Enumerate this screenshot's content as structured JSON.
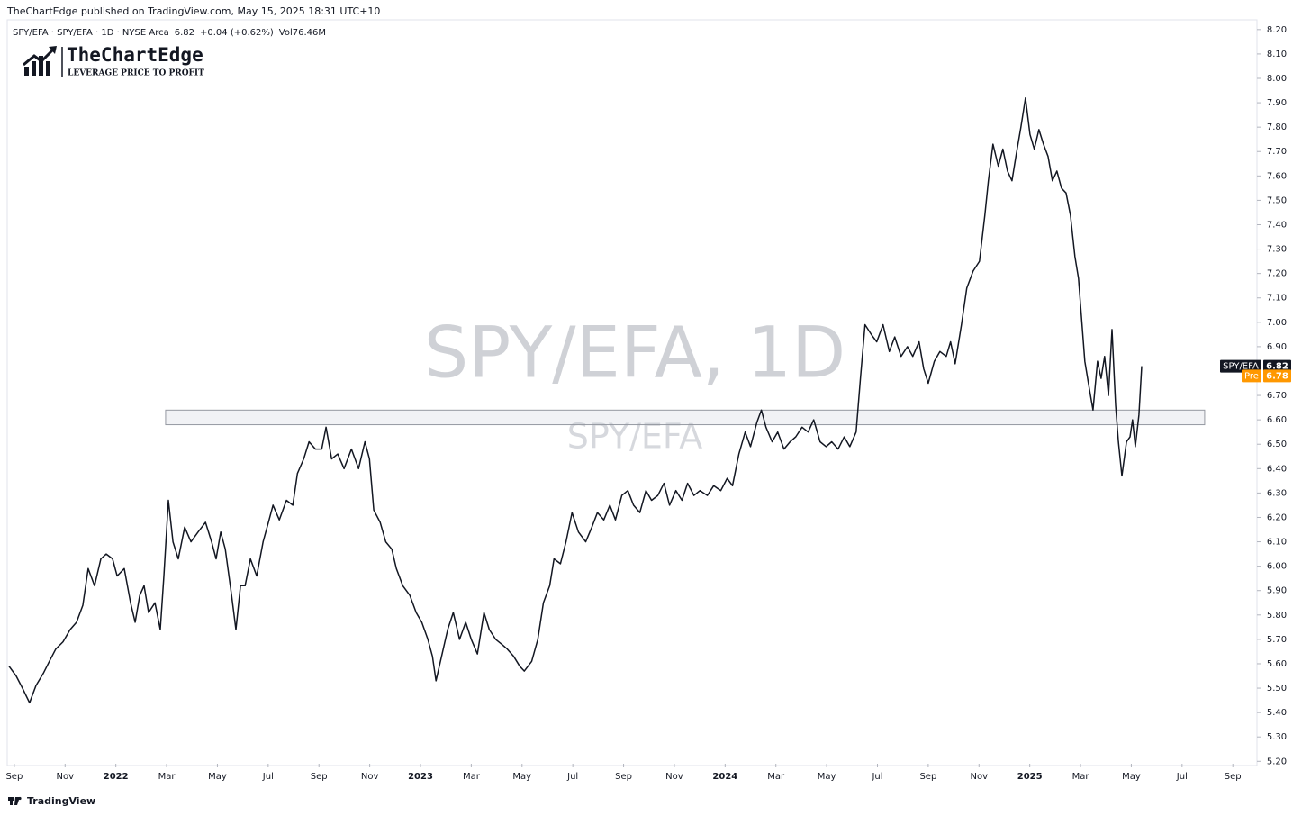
{
  "chart_data": {
    "type": "line",
    "publisher_note": "TheChartEdge published on TradingView.com, May 15, 2025 18:31 UTC+10",
    "logo_name": "TheChartEdge",
    "logo_tagline": "LEVERAGE PRICE TO PROFIT",
    "legend_symbol": "SPY/EFA · SPY/EFA · 1D · NYSE Arca",
    "legend_last": "6.82",
    "legend_change": "+0.04 (+0.62%)",
    "legend_volume": "Vol76.46M",
    "watermark_title": "SPY/EFA, 1D",
    "watermark_subtitle": "SPY/EFA",
    "footer_brand": "TradingView",
    "x": [
      -0.21,
      0.07,
      0.32,
      0.6,
      0.85,
      1.14,
      1.38,
      1.63,
      1.92,
      2.2,
      2.45,
      2.7,
      2.91,
      3.16,
      3.41,
      3.62,
      3.87,
      4.05,
      4.33,
      4.58,
      4.76,
      4.94,
      5.11,
      5.29,
      5.54,
      5.75,
      5.89,
      6.07,
      6.25,
      6.46,
      6.71,
      6.96,
      7.24,
      7.53,
      7.77,
      7.95,
      8.13,
      8.31,
      8.56,
      8.73,
      8.91,
      9.09,
      9.3,
      9.55,
      9.8,
      10.01,
      10.19,
      10.44,
      10.72,
      10.97,
      11.15,
      11.4,
      11.61,
      11.86,
      12.11,
      12.28,
      12.5,
      12.74,
      12.99,
      13.28,
      13.56,
      13.81,
      13.99,
      14.16,
      14.41,
      14.63,
      14.87,
      15.05,
      15.3,
      15.58,
      15.83,
      16.05,
      16.29,
      16.47,
      16.61,
      16.83,
      17.07,
      17.29,
      17.54,
      17.78,
      18.0,
      18.24,
      18.5,
      18.71,
      18.96,
      19.2,
      19.42,
      19.67,
      19.91,
      20.09,
      20.38,
      20.62,
      20.84,
      21.09,
      21.26,
      21.51,
      21.73,
      21.97,
      22.22,
      22.51,
      22.75,
      22.97,
      23.22,
      23.46,
      23.68,
      23.93,
      24.17,
      24.39,
      24.64,
      24.88,
      25.1,
      25.35,
      25.59,
      25.81,
      26.06,
      26.3,
      26.52,
      26.77,
      27.01,
      27.3,
      27.55,
      27.83,
      28.08,
      28.29,
      28.54,
      28.79,
      29.0,
      29.25,
      29.43,
      29.61,
      29.85,
      30.07,
      30.32,
      30.56,
      30.78,
      31.03,
      31.27,
      31.49,
      31.74,
      31.98,
      32.2,
      32.45,
      32.69,
      32.91,
      33.16,
      33.33,
      33.51,
      33.76,
      33.97,
      34.22,
      34.47,
      34.68,
      34.93,
      35.18,
      35.39,
      35.64,
      35.82,
      36.0,
      36.24,
      36.46,
      36.71,
      36.88,
      37.06,
      37.31,
      37.52,
      37.77,
      38.02,
      38.23,
      38.37,
      38.55,
      38.76,
      38.94,
      39.12,
      39.3,
      39.47,
      39.65,
      39.83,
      40.01,
      40.18,
      40.36,
      40.54,
      40.72,
      40.89,
      41.07,
      41.25,
      41.43,
      41.6,
      41.78,
      41.92,
      42.03,
      42.17,
      42.31,
      42.49,
      42.67,
      42.81,
      42.95,
      43.1,
      43.24,
      43.38,
      43.49,
      43.63,
      43.81,
      43.95,
      44.05,
      44.16,
      44.3,
      44.41
    ],
    "series": [
      {
        "name": "SPY/EFA",
        "color": "#131722",
        "values": [
          5.59,
          5.55,
          5.5,
          5.44,
          5.51,
          5.56,
          5.61,
          5.66,
          5.69,
          5.74,
          5.77,
          5.84,
          5.99,
          5.92,
          6.03,
          6.05,
          6.03,
          5.96,
          5.99,
          5.85,
          5.77,
          5.88,
          5.92,
          5.81,
          5.85,
          5.74,
          5.96,
          6.27,
          6.1,
          6.03,
          6.16,
          6.1,
          6.14,
          6.18,
          6.1,
          6.03,
          6.14,
          6.07,
          5.88,
          5.74,
          5.92,
          5.92,
          6.03,
          5.96,
          6.1,
          6.18,
          6.25,
          6.19,
          6.27,
          6.25,
          6.38,
          6.44,
          6.51,
          6.48,
          6.48,
          6.57,
          6.44,
          6.46,
          6.4,
          6.48,
          6.4,
          6.51,
          6.44,
          6.23,
          6.18,
          6.1,
          6.07,
          5.99,
          5.92,
          5.88,
          5.81,
          5.77,
          5.7,
          5.63,
          5.53,
          5.63,
          5.74,
          5.81,
          5.7,
          5.77,
          5.7,
          5.64,
          5.81,
          5.74,
          5.7,
          5.68,
          5.66,
          5.63,
          5.59,
          5.57,
          5.61,
          5.7,
          5.85,
          5.92,
          6.03,
          6.01,
          6.1,
          6.22,
          6.14,
          6.1,
          6.16,
          6.22,
          6.19,
          6.25,
          6.19,
          6.29,
          6.31,
          6.25,
          6.22,
          6.31,
          6.27,
          6.29,
          6.34,
          6.25,
          6.31,
          6.27,
          6.34,
          6.29,
          6.31,
          6.29,
          6.33,
          6.31,
          6.36,
          6.33,
          6.46,
          6.55,
          6.49,
          6.59,
          6.64,
          6.57,
          6.51,
          6.55,
          6.48,
          6.51,
          6.53,
          6.57,
          6.55,
          6.6,
          6.51,
          6.49,
          6.51,
          6.48,
          6.53,
          6.49,
          6.55,
          6.77,
          6.99,
          6.95,
          6.92,
          6.99,
          6.88,
          6.94,
          6.86,
          6.9,
          6.86,
          6.92,
          6.81,
          6.75,
          6.84,
          6.88,
          6.86,
          6.92,
          6.83,
          6.99,
          7.14,
          7.21,
          7.25,
          7.44,
          7.58,
          7.73,
          7.64,
          7.71,
          7.62,
          7.58,
          7.69,
          7.8,
          7.92,
          7.77,
          7.71,
          7.79,
          7.73,
          7.68,
          7.58,
          7.62,
          7.55,
          7.53,
          7.44,
          7.27,
          7.18,
          7.03,
          6.84,
          6.75,
          6.64,
          6.84,
          6.77,
          6.86,
          6.7,
          6.97,
          6.66,
          6.51,
          6.37,
          6.51,
          6.53,
          6.6,
          6.49,
          6.62,
          6.82
        ]
      }
    ],
    "price_labels": [
      {
        "name": "SPY/EFA",
        "value": 6.82,
        "color": "#131722"
      },
      {
        "name": "Pre",
        "value": 6.78,
        "color": "#ff9800"
      }
    ],
    "zones": [
      {
        "x": [
          5.96,
          46.89
        ],
        "y": [
          6.58,
          6.64
        ]
      }
    ],
    "xlim": [
      -0.28,
      48.95
    ],
    "xticks": [
      {
        "value": 0,
        "label": "Sep"
      },
      {
        "value": 2,
        "label": "Nov"
      },
      {
        "value": 4,
        "label": "2022"
      },
      {
        "value": 6,
        "label": "Mar"
      },
      {
        "value": 8,
        "label": "May"
      },
      {
        "value": 10,
        "label": "Jul"
      },
      {
        "value": 12,
        "label": "Sep"
      },
      {
        "value": 14,
        "label": "Nov"
      },
      {
        "value": 16,
        "label": "2023"
      },
      {
        "value": 18,
        "label": "Mar"
      },
      {
        "value": 20,
        "label": "May"
      },
      {
        "value": 22,
        "label": "Jul"
      },
      {
        "value": 24,
        "label": "Sep"
      },
      {
        "value": 26,
        "label": "Nov"
      },
      {
        "value": 28,
        "label": "2024"
      },
      {
        "value": 30,
        "label": "Mar"
      },
      {
        "value": 32,
        "label": "May"
      },
      {
        "value": 34,
        "label": "Jul"
      },
      {
        "value": 36,
        "label": "Sep"
      },
      {
        "value": 38,
        "label": "Nov"
      },
      {
        "value": 40,
        "label": "2025"
      },
      {
        "value": 42,
        "label": "Mar"
      },
      {
        "value": 44,
        "label": "May"
      },
      {
        "value": 46,
        "label": "Jul"
      },
      {
        "value": 48,
        "label": "Sep"
      }
    ],
    "ylim": [
      5.19,
      8.24
    ],
    "yticks": [
      {
        "value": 5.2,
        "label": "5.20"
      },
      {
        "value": 5.3,
        "label": "5.30"
      },
      {
        "value": 5.4,
        "label": "5.40"
      },
      {
        "value": 5.5,
        "label": "5.50"
      },
      {
        "value": 5.6,
        "label": "5.60"
      },
      {
        "value": 5.7,
        "label": "5.70"
      },
      {
        "value": 5.8,
        "label": "5.80"
      },
      {
        "value": 5.9,
        "label": "5.90"
      },
      {
        "value": 6.0,
        "label": "6.00"
      },
      {
        "value": 6.1,
        "label": "6.10"
      },
      {
        "value": 6.2,
        "label": "6.20"
      },
      {
        "value": 6.3,
        "label": "6.30"
      },
      {
        "value": 6.4,
        "label": "6.40"
      },
      {
        "value": 6.5,
        "label": "6.50"
      },
      {
        "value": 6.6,
        "label": "6.60"
      },
      {
        "value": 6.7,
        "label": "6.70"
      },
      {
        "value": 6.8,
        "label": "6.80"
      },
      {
        "value": 6.9,
        "label": "6.90"
      },
      {
        "value": 7.0,
        "label": "7.00"
      },
      {
        "value": 7.1,
        "label": "7.10"
      },
      {
        "value": 7.2,
        "label": "7.20"
      },
      {
        "value": 7.3,
        "label": "7.30"
      },
      {
        "value": 7.4,
        "label": "7.40"
      },
      {
        "value": 7.5,
        "label": "7.50"
      },
      {
        "value": 7.6,
        "label": "7.60"
      },
      {
        "value": 7.7,
        "label": "7.70"
      },
      {
        "value": 7.8,
        "label": "7.80"
      },
      {
        "value": 7.9,
        "label": "7.90"
      },
      {
        "value": 8.0,
        "label": "8.00"
      },
      {
        "value": 8.1,
        "label": "8.10"
      },
      {
        "value": 8.2,
        "label": "8.20"
      }
    ],
    "grid": false
  }
}
